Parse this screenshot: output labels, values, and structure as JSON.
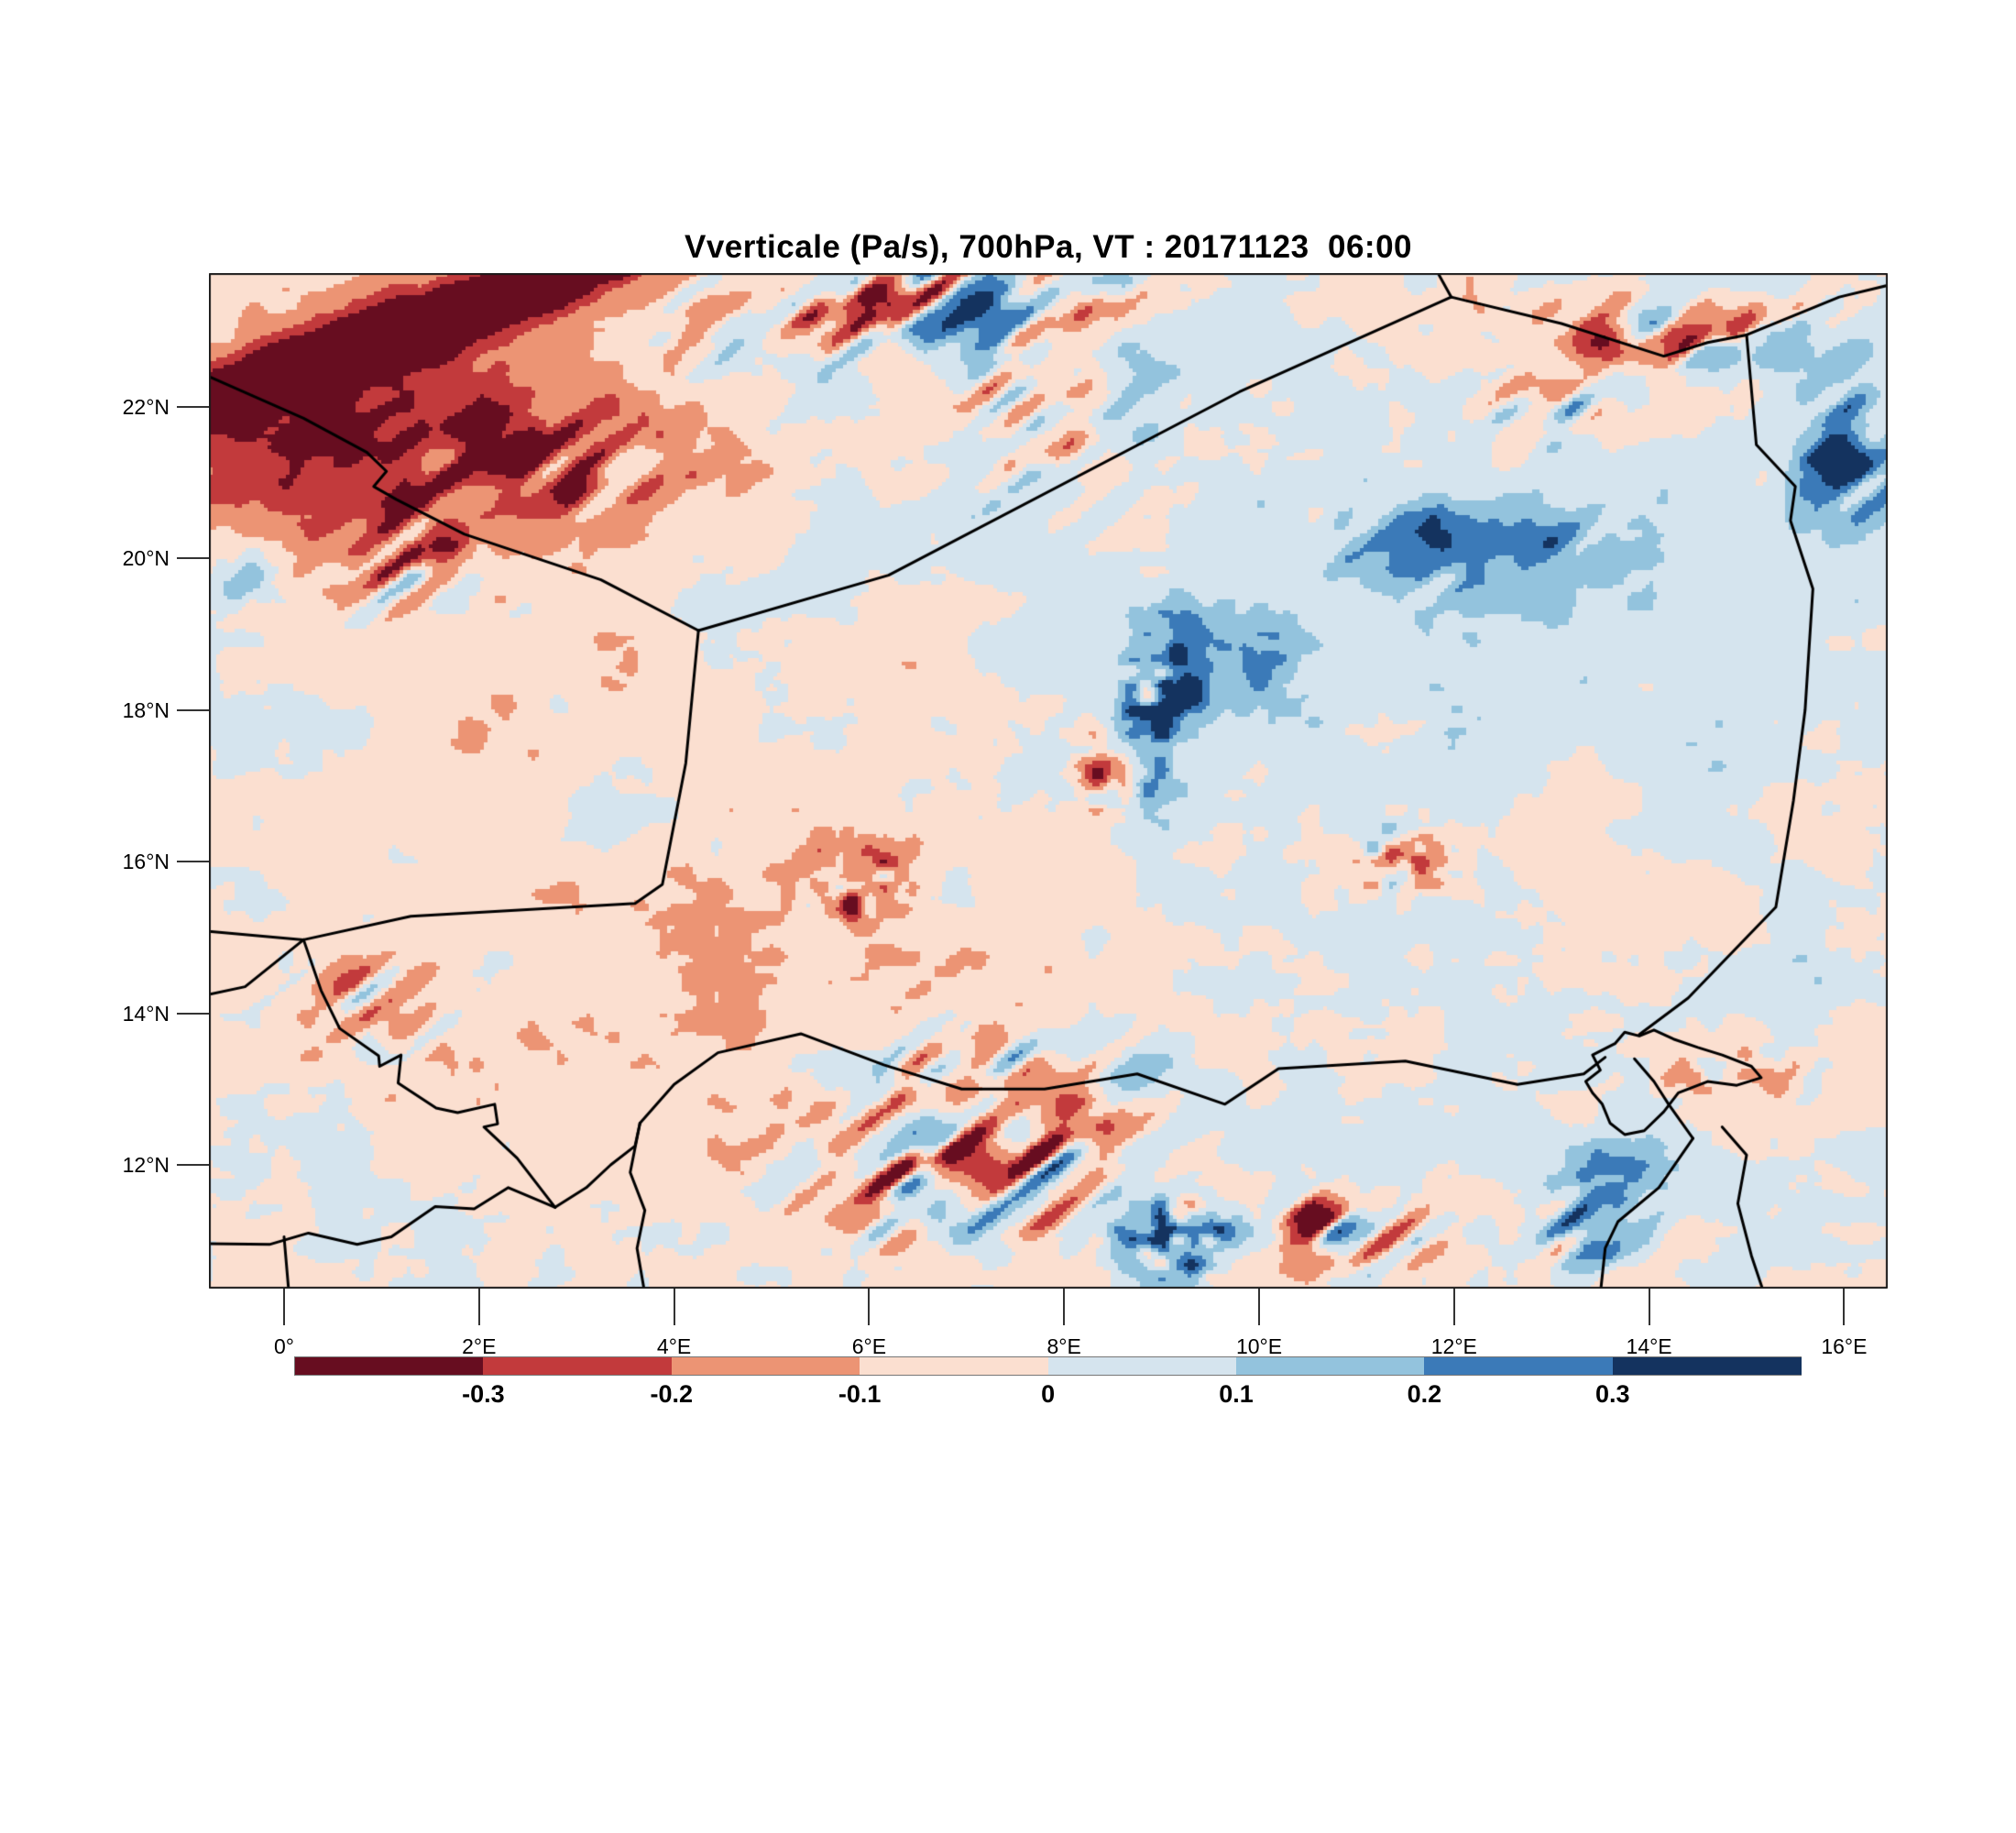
{
  "title": "Vverticale (Pa/s), 700hPa, VT : 20171123  06:00",
  "chart_data": {
    "type": "heatmap",
    "subtype": "filled-contour-map",
    "variable": "Vverticale",
    "units": "Pa/s",
    "level": "700hPa",
    "valid_time": "20171123 06:00",
    "title": "Vverticale (Pa/s), 700hPa, VT : 20171123  06:00",
    "grid": false,
    "legend_position": "bottom",
    "x_axis": {
      "labels": [
        "0°",
        "2°E",
        "4°E",
        "6°E",
        "8°E",
        "10°E",
        "12°E",
        "14°E",
        "16°E"
      ],
      "values": [
        0,
        2,
        4,
        6,
        8,
        10,
        12,
        14,
        16
      ],
      "range": [
        -0.77,
        16.45
      ]
    },
    "y_axis": {
      "labels": [
        "12°N",
        "14°N",
        "16°N",
        "18°N",
        "20°N",
        "22°N"
      ],
      "values": [
        12,
        14,
        16,
        18,
        20,
        22
      ],
      "range": [
        10.37,
        23.77
      ]
    },
    "colorbar": {
      "labels": [
        "-0.3",
        "-0.2",
        "-0.1",
        "0",
        "0.1",
        "0.2",
        "0.3"
      ],
      "levels": [
        -0.3,
        -0.2,
        -0.1,
        0,
        0.1,
        0.2,
        0.3
      ],
      "colors": [
        "#670d20",
        "#c23a3c",
        "#ec9474",
        "#fbdfd0",
        "#d5e4ee",
        "#93c3dd",
        "#3b7ab8",
        "#14335f"
      ]
    },
    "border_color": "#000000",
    "map_borders": [
      [
        [
          -0.77,
          22.4
        ],
        [
          0.2,
          21.85
        ],
        [
          0.85,
          21.4
        ],
        [
          1.05,
          21.15
        ],
        [
          0.92,
          20.95
        ],
        [
          1.15,
          20.78
        ],
        [
          1.85,
          20.32
        ],
        [
          3.25,
          19.72
        ],
        [
          4.25,
          19.05
        ]
      ],
      [
        [
          4.25,
          19.05
        ],
        [
          6.2,
          19.78
        ],
        [
          9.8,
          22.2
        ],
        [
          11.97,
          23.45
        ]
      ],
      [
        [
          11.97,
          23.45
        ],
        [
          11.82,
          23.8
        ]
      ],
      [
        [
          11.97,
          23.45
        ],
        [
          13.1,
          23.1
        ],
        [
          14.15,
          22.67
        ],
        [
          14.6,
          22.85
        ],
        [
          15.0,
          22.95
        ]
      ],
      [
        [
          15.0,
          22.95
        ],
        [
          15.95,
          23.45
        ],
        [
          16.5,
          23.62
        ]
      ],
      [
        [
          15.0,
          22.95
        ],
        [
          15.1,
          21.5
        ],
        [
          15.5,
          20.95
        ],
        [
          15.45,
          20.5
        ],
        [
          15.68,
          19.6
        ],
        [
          15.6,
          18.0
        ],
        [
          15.48,
          16.8
        ],
        [
          15.3,
          15.4
        ],
        [
          14.4,
          14.2
        ],
        [
          13.9,
          13.72
        ]
      ],
      [
        [
          4.25,
          19.05
        ],
        [
          4.12,
          17.3
        ],
        [
          3.88,
          15.7
        ],
        [
          3.6,
          15.45
        ],
        [
          1.3,
          15.28
        ],
        [
          0.2,
          14.97
        ],
        [
          -0.77,
          15.08
        ]
      ],
      [
        [
          0.2,
          14.97
        ],
        [
          -0.4,
          14.35
        ],
        [
          -0.77,
          14.25
        ]
      ],
      [
        [
          0.2,
          14.97
        ],
        [
          0.38,
          14.3
        ],
        [
          0.57,
          13.8
        ],
        [
          0.97,
          13.44
        ],
        [
          0.98,
          13.3
        ],
        [
          1.2,
          13.45
        ],
        [
          1.17,
          13.08
        ],
        [
          1.56,
          12.75
        ],
        [
          1.78,
          12.69
        ],
        [
          2.16,
          12.8
        ],
        [
          2.19,
          12.54
        ],
        [
          2.05,
          12.5
        ],
        [
          2.39,
          12.09
        ],
        [
          2.78,
          11.44
        ]
      ],
      [
        [
          2.78,
          11.44
        ],
        [
          3.1,
          11.7
        ],
        [
          3.35,
          12.0
        ],
        [
          3.6,
          12.25
        ],
        [
          3.65,
          12.55
        ]
      ],
      [
        [
          3.65,
          12.55
        ],
        [
          4.0,
          13.06
        ],
        [
          4.45,
          13.48
        ],
        [
          5.3,
          13.73
        ],
        [
          6.15,
          13.32
        ],
        [
          6.95,
          13.0
        ],
        [
          7.8,
          13.0
        ],
        [
          8.75,
          13.2
        ],
        [
          9.65,
          12.8
        ],
        [
          10.2,
          13.27
        ],
        [
          11.5,
          13.37
        ],
        [
          12.65,
          13.06
        ],
        [
          13.33,
          13.2
        ],
        [
          13.55,
          13.42
        ]
      ],
      [
        [
          3.65,
          12.55
        ],
        [
          3.55,
          11.9
        ],
        [
          3.7,
          11.4
        ],
        [
          3.62,
          10.9
        ],
        [
          3.7,
          10.3
        ]
      ],
      [
        [
          2.78,
          11.44
        ],
        [
          2.3,
          11.7
        ],
        [
          1.95,
          11.42
        ],
        [
          1.55,
          11.45
        ],
        [
          1.1,
          11.05
        ],
        [
          0.75,
          10.95
        ],
        [
          0.25,
          11.1
        ],
        [
          -0.15,
          10.95
        ],
        [
          -0.77,
          10.96
        ]
      ],
      [
        [
          0.0,
          11.05
        ],
        [
          0.05,
          10.3
        ]
      ],
      [
        [
          13.65,
          13.6
        ],
        [
          13.75,
          13.75
        ],
        [
          13.9,
          13.7
        ],
        [
          14.05,
          13.78
        ],
        [
          14.25,
          13.66
        ],
        [
          14.5,
          13.55
        ],
        [
          14.75,
          13.45
        ],
        [
          15.05,
          13.3
        ],
        [
          15.15,
          13.15
        ],
        [
          14.9,
          13.05
        ],
        [
          14.6,
          13.1
        ],
        [
          14.3,
          12.95
        ],
        [
          14.15,
          12.7
        ],
        [
          13.95,
          12.45
        ],
        [
          13.75,
          12.4
        ],
        [
          13.6,
          12.55
        ],
        [
          13.52,
          12.8
        ],
        [
          13.42,
          12.95
        ],
        [
          13.35,
          13.1
        ],
        [
          13.5,
          13.25
        ],
        [
          13.42,
          13.45
        ],
        [
          13.65,
          13.6
        ]
      ],
      [
        [
          13.85,
          13.4
        ],
        [
          14.05,
          13.1
        ],
        [
          14.2,
          12.8
        ],
        [
          14.45,
          12.35
        ]
      ],
      [
        [
          14.45,
          12.35
        ],
        [
          14.1,
          11.7
        ],
        [
          13.68,
          11.25
        ],
        [
          13.55,
          10.9
        ],
        [
          13.5,
          10.3
        ]
      ],
      [
        [
          14.75,
          12.5
        ],
        [
          15.0,
          12.13
        ],
        [
          14.91,
          11.49
        ],
        [
          15.05,
          10.8
        ],
        [
          15.18,
          10.3
        ]
      ]
    ],
    "field_features": [
      {
        "center": [
          6.7,
          23.3
        ],
        "sigma": [
          1.7,
          0.75
        ],
        "amp": 0.5,
        "bias": -0.05,
        "kind": "wave"
      },
      {
        "center": [
          4.3,
          23.1
        ],
        "sigma": [
          1.1,
          0.7
        ],
        "amp": 0.22,
        "bias": 0.14,
        "kind": "wave"
      },
      {
        "center": [
          14.2,
          23.1
        ],
        "sigma": [
          1.5,
          0.75
        ],
        "amp": 0.42,
        "bias": -0.1,
        "kind": "wave"
      },
      {
        "center": [
          12.9,
          22.1
        ],
        "sigma": [
          0.8,
          0.5
        ],
        "amp": 0.35,
        "bias": 0.0,
        "kind": "wave"
      },
      {
        "center": [
          16.1,
          21.4
        ],
        "sigma": [
          0.6,
          1.0
        ],
        "amp": 0.3,
        "bias": 0.28,
        "kind": "wave"
      },
      {
        "center": [
          12.1,
          20.2
        ],
        "sigma": [
          1.5,
          0.8
        ],
        "amp": 0.2,
        "bias": 0.16,
        "kind": "wave"
      },
      {
        "center": [
          9.0,
          18.1
        ],
        "sigma": [
          0.4,
          1.1
        ],
        "amp": 0.45,
        "bias": 0.28,
        "kind": "spot"
      },
      {
        "center": [
          9.9,
          18.6
        ],
        "sigma": [
          1.0,
          0.8
        ],
        "amp": 0.1,
        "bias": 0.13,
        "kind": "spot"
      },
      {
        "center": [
          8.4,
          17.0
        ],
        "sigma": [
          0.35,
          0.6
        ],
        "amp": 0.38,
        "bias": -0.15,
        "kind": "spot"
      },
      {
        "center": [
          11.45,
          16.0
        ],
        "sigma": [
          0.5,
          0.45
        ],
        "amp": 0.5,
        "bias": -0.1,
        "kind": "spot"
      },
      {
        "center": [
          5.9,
          15.75
        ],
        "sigma": [
          0.55,
          0.5
        ],
        "amp": 0.45,
        "bias": -0.18,
        "kind": "spot"
      },
      {
        "center": [
          7.1,
          12.2
        ],
        "sigma": [
          1.5,
          1.4
        ],
        "amp": 0.55,
        "bias": -0.08,
        "kind": "wave"
      },
      {
        "center": [
          9.15,
          11.0
        ],
        "sigma": [
          0.6,
          0.55
        ],
        "amp": 0.5,
        "bias": 0.15,
        "kind": "spot"
      },
      {
        "center": [
          10.9,
          11.1
        ],
        "sigma": [
          0.8,
          0.5
        ],
        "amp": 0.55,
        "bias": -0.12,
        "kind": "wave"
      },
      {
        "center": [
          13.5,
          11.1
        ],
        "sigma": [
          0.6,
          0.45
        ],
        "amp": 0.5,
        "bias": 0.0,
        "kind": "wave"
      },
      {
        "center": [
          13.7,
          11.9
        ],
        "sigma": [
          0.8,
          0.5
        ],
        "amp": 0.12,
        "bias": 0.16,
        "kind": "spot"
      },
      {
        "center": [
          14.95,
          13.2
        ],
        "sigma": [
          0.9,
          0.55
        ],
        "amp": 0.2,
        "bias": -0.14,
        "kind": "spot"
      },
      {
        "center": [
          0.9,
          14.1
        ],
        "sigma": [
          0.8,
          0.6
        ],
        "amp": 0.35,
        "bias": -0.05,
        "kind": "wave"
      },
      {
        "center": [
          -0.4,
          19.8
        ],
        "sigma": [
          0.4,
          0.5
        ],
        "amp": 0.15,
        "bias": 0.22,
        "kind": "spot"
      },
      {
        "center": [
          1.3,
          19.9
        ],
        "sigma": [
          0.9,
          0.7
        ],
        "amp": 0.3,
        "bias": 0.0,
        "kind": "wave"
      },
      {
        "center": [
          7.9,
          21.9
        ],
        "sigma": [
          1.2,
          1.2
        ],
        "amp": 0.25,
        "bias": -0.06,
        "kind": "wave"
      },
      {
        "center": [
          2.5,
          21.2
        ],
        "sigma": [
          1.6,
          0.9
        ],
        "amp": 0.26,
        "bias": -0.1,
        "kind": "wave"
      }
    ],
    "regional_bias": [
      {
        "center": [
          1.2,
          22.4
        ],
        "sigma": [
          3.2,
          2.0
        ],
        "amp": -0.13
      },
      {
        "center": [
          0.8,
          21.3
        ],
        "sigma": [
          2.2,
          1.3
        ],
        "amp": -0.2
      },
      {
        "center": [
          3.0,
          16.5
        ],
        "sigma": [
          4.5,
          3.5
        ],
        "amp": -0.035
      },
      {
        "center": [
          11.5,
          19.0
        ],
        "sigma": [
          4.0,
          3.0
        ],
        "amp": 0.05
      },
      {
        "center": [
          12.0,
          13.5
        ],
        "sigma": [
          3.0,
          2.0
        ],
        "amp": 0.04
      },
      {
        "center": [
          4.5,
          14.2
        ],
        "sigma": [
          3.0,
          1.3
        ],
        "amp": -0.045
      },
      {
        "center": [
          6.0,
          11.0
        ],
        "sigma": [
          2.5,
          1.5
        ],
        "amp": -0.03
      },
      {
        "center": [
          16.0,
          22.8
        ],
        "sigma": [
          1.5,
          1.2
        ],
        "amp": 0.05
      }
    ],
    "ridge_band": {
      "point": [
        -0.77,
        22.15
      ],
      "slope": 0.42,
      "amp": -0.5,
      "width": 0.4
    }
  },
  "layout_text": {
    "note": ""
  }
}
